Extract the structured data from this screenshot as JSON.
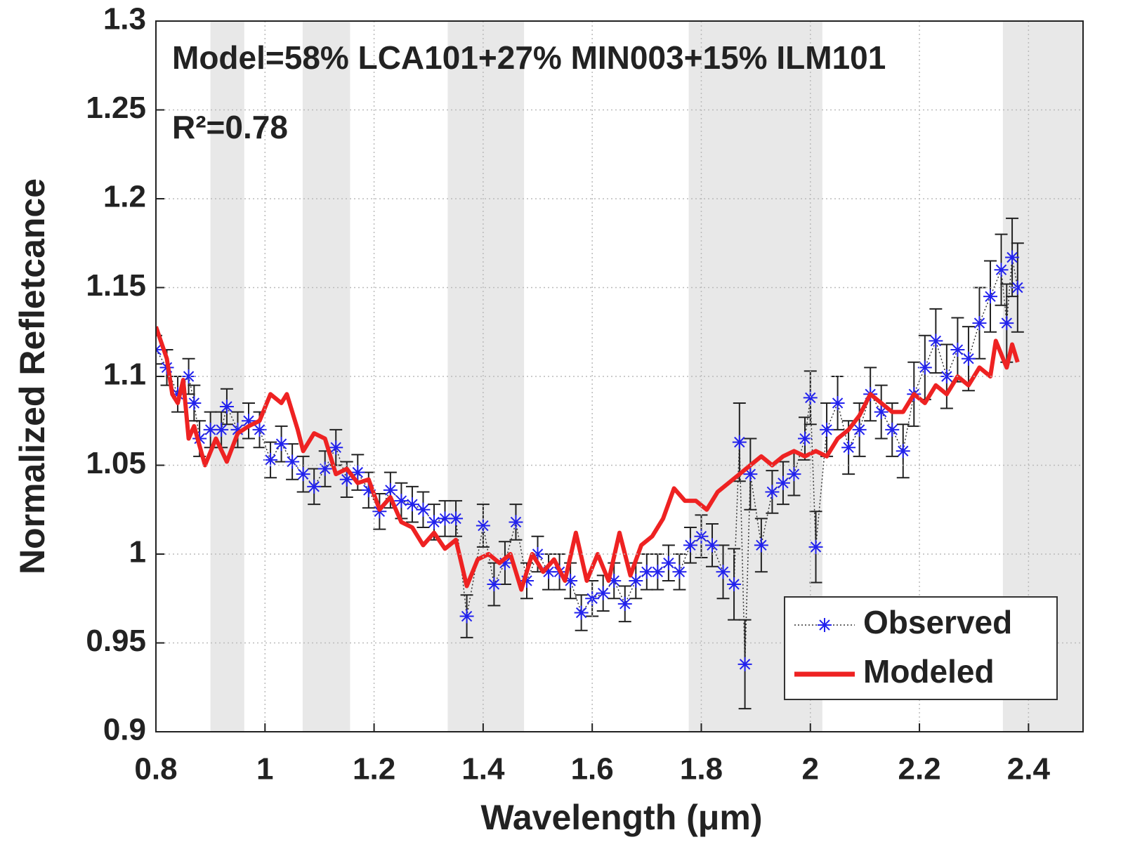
{
  "chart_data": {
    "type": "line",
    "annotations": [
      "Model=58% LCA101+27% MIN003+15% ILM101",
      "R²=0.78"
    ],
    "xlabel": "Wavelength (μm)",
    "ylabel": "Normalized Refletcance",
    "xlim": [
      0.8,
      2.5
    ],
    "ylim": [
      0.9,
      1.3
    ],
    "xticks": [
      0.8,
      1,
      1.2,
      1.4,
      1.6,
      1.8,
      2,
      2.2,
      2.4
    ],
    "yticks": [
      0.9,
      0.95,
      1,
      1.05,
      1.1,
      1.15,
      1.2,
      1.25,
      1.3
    ],
    "grid": true,
    "legend": "lower right",
    "shaded_regions": [
      [
        0.9,
        0.962
      ],
      [
        1.069,
        1.156
      ],
      [
        1.335,
        1.475
      ],
      [
        1.777,
        2.022
      ],
      [
        2.353,
        2.5
      ]
    ],
    "series": [
      {
        "name": "Observed",
        "color": "#2222ee",
        "x": [
          0.8,
          0.82,
          0.84,
          0.86,
          0.87,
          0.88,
          0.9,
          0.92,
          0.93,
          0.95,
          0.97,
          0.99,
          1.01,
          1.03,
          1.05,
          1.07,
          1.09,
          1.11,
          1.13,
          1.15,
          1.17,
          1.19,
          1.21,
          1.23,
          1.25,
          1.27,
          1.29,
          1.31,
          1.33,
          1.35,
          1.37,
          1.4,
          1.42,
          1.44,
          1.46,
          1.48,
          1.5,
          1.52,
          1.54,
          1.56,
          1.58,
          1.6,
          1.62,
          1.64,
          1.66,
          1.68,
          1.7,
          1.72,
          1.74,
          1.76,
          1.78,
          1.8,
          1.82,
          1.84,
          1.86,
          1.87,
          1.88,
          1.89,
          1.91,
          1.93,
          1.95,
          1.97,
          1.99,
          2.0,
          2.01,
          2.03,
          2.05,
          2.07,
          2.09,
          2.11,
          2.13,
          2.15,
          2.17,
          2.19,
          2.21,
          2.23,
          2.25,
          2.27,
          2.29,
          2.31,
          2.33,
          2.35,
          2.36,
          2.37,
          2.38
        ],
        "values": [
          1.115,
          1.105,
          1.09,
          1.1,
          1.085,
          1.065,
          1.07,
          1.07,
          1.083,
          1.07,
          1.075,
          1.07,
          1.053,
          1.062,
          1.052,
          1.045,
          1.038,
          1.048,
          1.06,
          1.042,
          1.046,
          1.036,
          1.024,
          1.036,
          1.03,
          1.028,
          1.025,
          1.018,
          1.02,
          1.02,
          0.965,
          1.016,
          0.983,
          0.995,
          1.018,
          0.985,
          1.0,
          0.99,
          0.99,
          0.985,
          0.967,
          0.975,
          0.978,
          0.985,
          0.972,
          0.985,
          0.99,
          0.99,
          0.995,
          0.99,
          1.005,
          1.01,
          1.005,
          0.99,
          0.983,
          1.063,
          0.938,
          1.045,
          1.005,
          1.035,
          1.04,
          1.045,
          1.065,
          1.088,
          1.004,
          1.07,
          1.085,
          1.06,
          1.07,
          1.09,
          1.08,
          1.07,
          1.058,
          1.09,
          1.105,
          1.12,
          1.1,
          1.115,
          1.11,
          1.13,
          1.145,
          1.16,
          1.13,
          1.167,
          1.15
        ],
        "errors": [
          0.008,
          0.01,
          0.01,
          0.01,
          0.01,
          0.01,
          0.01,
          0.01,
          0.01,
          0.01,
          0.01,
          0.01,
          0.01,
          0.01,
          0.01,
          0.01,
          0.01,
          0.01,
          0.01,
          0.01,
          0.01,
          0.01,
          0.01,
          0.01,
          0.01,
          0.01,
          0.01,
          0.01,
          0.01,
          0.01,
          0.012,
          0.012,
          0.012,
          0.012,
          0.01,
          0.01,
          0.01,
          0.01,
          0.01,
          0.01,
          0.01,
          0.01,
          0.01,
          0.01,
          0.01,
          0.01,
          0.01,
          0.01,
          0.01,
          0.01,
          0.01,
          0.012,
          0.012,
          0.015,
          0.02,
          0.022,
          0.025,
          0.02,
          0.015,
          0.012,
          0.012,
          0.012,
          0.012,
          0.015,
          0.02,
          0.015,
          0.015,
          0.015,
          0.015,
          0.015,
          0.015,
          0.015,
          0.015,
          0.018,
          0.018,
          0.018,
          0.018,
          0.018,
          0.018,
          0.02,
          0.02,
          0.02,
          0.022,
          0.022,
          0.025
        ]
      },
      {
        "name": "Modeled",
        "color": "#ee2222",
        "x": [
          0.8,
          0.82,
          0.83,
          0.84,
          0.85,
          0.86,
          0.87,
          0.89,
          0.91,
          0.93,
          0.95,
          0.97,
          0.99,
          1.01,
          1.03,
          1.04,
          1.06,
          1.07,
          1.09,
          1.11,
          1.13,
          1.15,
          1.17,
          1.19,
          1.21,
          1.23,
          1.25,
          1.27,
          1.29,
          1.31,
          1.33,
          1.35,
          1.37,
          1.39,
          1.41,
          1.43,
          1.45,
          1.47,
          1.49,
          1.51,
          1.53,
          1.55,
          1.57,
          1.59,
          1.61,
          1.63,
          1.65,
          1.67,
          1.69,
          1.71,
          1.73,
          1.75,
          1.77,
          1.79,
          1.81,
          1.83,
          1.85,
          1.87,
          1.89,
          1.91,
          1.93,
          1.95,
          1.97,
          1.99,
          2.01,
          2.03,
          2.05,
          2.07,
          2.09,
          2.11,
          2.13,
          2.15,
          2.17,
          2.19,
          2.21,
          2.23,
          2.25,
          2.27,
          2.29,
          2.31,
          2.33,
          2.34,
          2.36,
          2.37,
          2.38
        ],
        "values": [
          1.128,
          1.11,
          1.09,
          1.085,
          1.098,
          1.065,
          1.072,
          1.05,
          1.065,
          1.052,
          1.068,
          1.072,
          1.075,
          1.09,
          1.085,
          1.09,
          1.07,
          1.058,
          1.068,
          1.065,
          1.045,
          1.048,
          1.04,
          1.042,
          1.025,
          1.032,
          1.018,
          1.015,
          1.005,
          1.012,
          1.003,
          1.008,
          0.982,
          0.997,
          1.0,
          0.995,
          1.0,
          0.98,
          1.0,
          0.99,
          0.997,
          0.985,
          1.012,
          0.985,
          1.0,
          0.985,
          1.012,
          0.988,
          1.005,
          1.01,
          1.02,
          1.037,
          1.03,
          1.03,
          1.025,
          1.035,
          1.04,
          1.045,
          1.05,
          1.055,
          1.05,
          1.055,
          1.058,
          1.055,
          1.058,
          1.055,
          1.065,
          1.07,
          1.078,
          1.09,
          1.085,
          1.08,
          1.08,
          1.09,
          1.085,
          1.095,
          1.09,
          1.1,
          1.095,
          1.105,
          1.1,
          1.12,
          1.105,
          1.118,
          1.108
        ]
      }
    ]
  }
}
